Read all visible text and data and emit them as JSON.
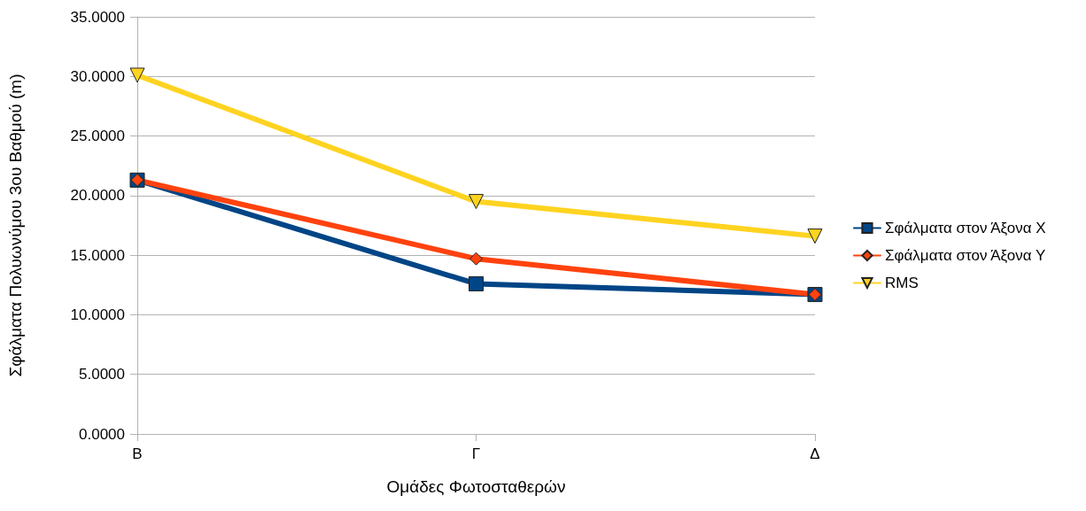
{
  "chart_data": {
    "type": "line",
    "xlabel": "Ομάδες Φωτοσταθερών",
    "ylabel": "Σφάλματα Πολυωνύμου 3ου Βαθμού (m)",
    "categories": [
      "Β",
      "Γ",
      "Δ"
    ],
    "series": [
      {
        "name": "Σφάλματα στον Άξονα Χ",
        "color": "#004586",
        "marker": "square",
        "values": [
          21.3,
          12.6,
          11.7
        ]
      },
      {
        "name": "Σφάλματα στον Άξονα Υ",
        "color": "#ff420e",
        "marker": "diamond",
        "values": [
          21.3,
          14.7,
          11.7
        ]
      },
      {
        "name": "RMS",
        "color": "#ffd320",
        "marker": "triangle",
        "values": [
          30.1,
          19.5,
          16.6
        ]
      }
    ],
    "ylim": [
      0,
      35
    ],
    "yticks": [
      {
        "value": 0,
        "label": "0.0000"
      },
      {
        "value": 5,
        "label": "5.0000"
      },
      {
        "value": 10,
        "label": "10.0000"
      },
      {
        "value": 15,
        "label": "15.0000"
      },
      {
        "value": 20,
        "label": "20.0000"
      },
      {
        "value": 25,
        "label": "25.0000"
      },
      {
        "value": 30,
        "label": "30.0000"
      },
      {
        "value": 35,
        "label": "35.0000"
      }
    ],
    "grid": "y",
    "legend": "right",
    "line_style": "solid"
  }
}
